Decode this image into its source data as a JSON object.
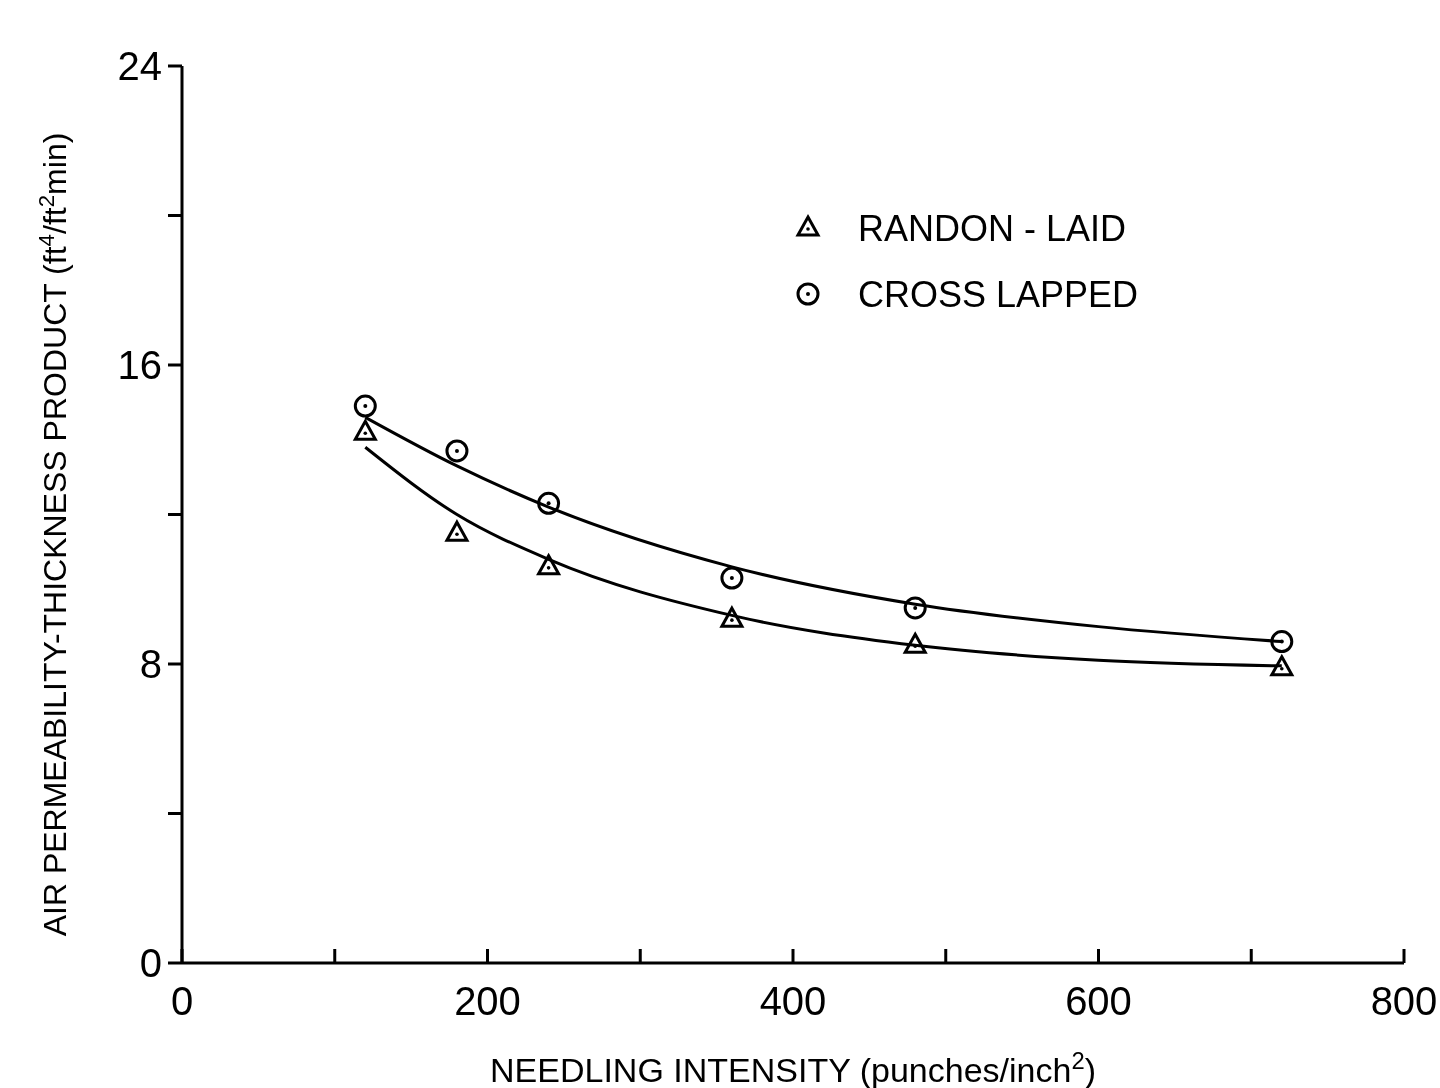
{
  "chart_data": {
    "type": "scatter",
    "xlabel": "NEEDLING  INTENSITY (punches/inch$^{2}$)",
    "ylabel": "AIR  PERMEABILITY-THICKNESS  PRODUCT (ft$^{4}$/ft$^{2}$min)",
    "xlim": [
      0,
      800
    ],
    "ylim": [
      0,
      24
    ],
    "xticks": [
      0,
      {
        "value": 100,
        "label": null
      },
      200,
      {
        "value": 300,
        "label": null
      },
      400,
      {
        "value": 500,
        "label": null
      },
      600,
      {
        "value": 700,
        "label": null
      },
      800
    ],
    "yticks": [
      0,
      {
        "value": 4,
        "label": null
      },
      8,
      {
        "value": 12,
        "label": null
      },
      16,
      {
        "value": 20,
        "label": null
      },
      24
    ],
    "grid": false,
    "legend": "top right",
    "series": [
      {
        "name": "RANDON - LAID",
        "color": "#000000",
        "marker": "triangle",
        "x": [
          120,
          180,
          240,
          360,
          480,
          720
        ],
        "values": [
          14.2,
          11.5,
          10.6,
          9.2,
          8.5,
          7.9
        ]
      },
      {
        "name": "CROSS  LAPPED",
        "color": "#000000",
        "marker": "circle",
        "x": [
          120,
          180,
          240,
          360,
          480,
          720
        ],
        "values": [
          14.9,
          13.7,
          12.3,
          10.3,
          9.5,
          8.6
        ]
      },
      {
        "type": "line",
        "color": "#000000",
        "marker": "none",
        "x": [
          120,
          180,
          240,
          360,
          480,
          600,
          720
        ],
        "values": [
          13.8,
          12.0,
          10.8,
          9.3,
          8.5,
          8.1,
          7.95
        ]
      },
      {
        "type": "line",
        "color": "#000000",
        "marker": "none",
        "x": [
          120,
          180,
          240,
          360,
          480,
          600,
          720
        ],
        "values": [
          14.6,
          13.3,
          12.2,
          10.6,
          9.6,
          9.0,
          8.6
        ]
      }
    ]
  }
}
